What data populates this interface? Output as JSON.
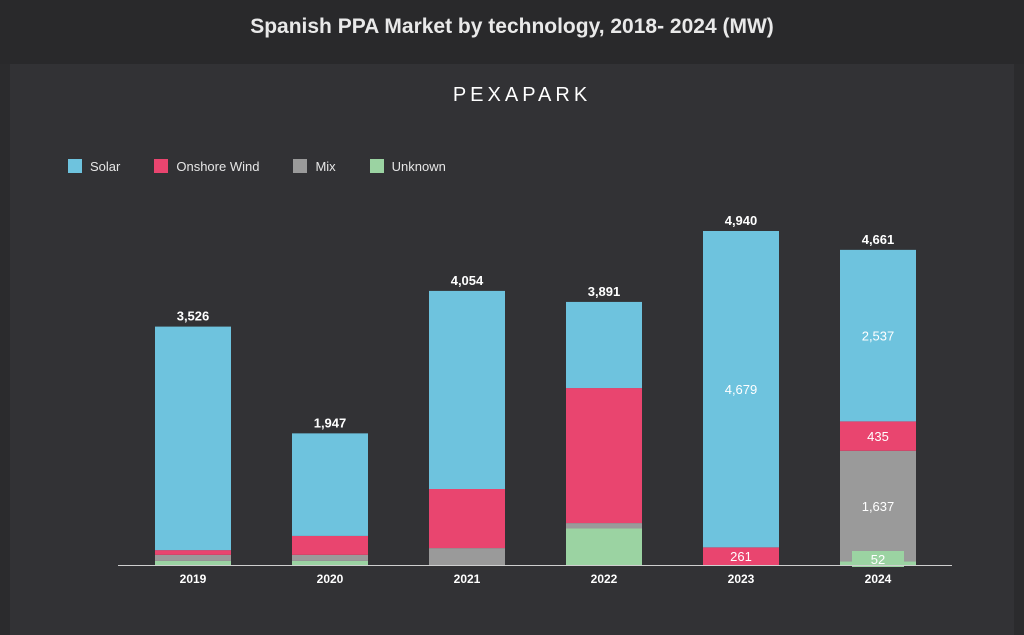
{
  "header": {
    "title": "Spanish PPA Market by technology, 2018- 2024 (MW)"
  },
  "brand": "PEXAPARK",
  "colors": {
    "Solar": "#6ec3de",
    "Onshore Wind": "#e9456f",
    "Mix": "#9a9a9a",
    "Unknown": "#9bd3a2",
    "background": "#323235",
    "axis": "#cfcfcf",
    "label": "#ffffff"
  },
  "legend": [
    "Solar",
    "Onshore Wind",
    "Mix",
    "Unknown"
  ],
  "chart_data": {
    "type": "bar",
    "stacked": true,
    "title": "Spanish PPA Market by technology, 2018- 2024 (MW)",
    "categories": [
      "2019",
      "2020",
      "2021",
      "2022",
      "2023",
      "2024"
    ],
    "series": [
      {
        "name": "Unknown",
        "values": [
          60,
          60,
          0,
          540,
          0,
          52
        ]
      },
      {
        "name": "Mix",
        "values": [
          90,
          90,
          250,
          80,
          0,
          1637
        ]
      },
      {
        "name": "Onshore Wind",
        "values": [
          70,
          280,
          874,
          1997,
          261,
          435
        ]
      },
      {
        "name": "Solar",
        "values": [
          3306,
          1517,
          2930,
          1274,
          4679,
          2537
        ]
      }
    ],
    "totals": [
      "3,526",
      "1,947",
      "4,054",
      "3,891",
      "4,940",
      "4,661"
    ],
    "segment_labels": [
      {
        "category": "2023",
        "series": "Solar",
        "text": "4,679"
      },
      {
        "category": "2023",
        "series": "Onshore Wind",
        "text": "261"
      },
      {
        "category": "2024",
        "series": "Solar",
        "text": "2,537"
      },
      {
        "category": "2024",
        "series": "Onshore Wind",
        "text": "435"
      },
      {
        "category": "2024",
        "series": "Mix",
        "text": "1,637"
      },
      {
        "category": "2024",
        "series": "Unknown",
        "text": "52"
      }
    ],
    "ylim": [
      0,
      4940
    ],
    "legend_position": "top-left",
    "grid": false
  }
}
